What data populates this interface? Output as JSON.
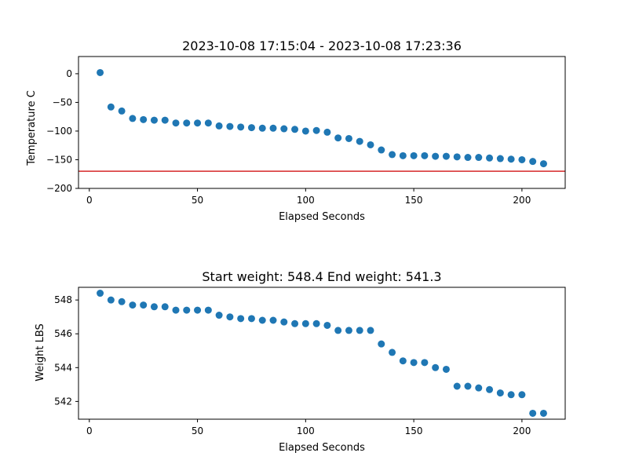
{
  "chart_data": [
    {
      "type": "scatter",
      "title": "2023-10-08 17:15:04 - 2023-10-08 17:23:36",
      "xlabel": "Elapsed Seconds",
      "ylabel": "Temperature C",
      "xlim": [
        -5,
        220
      ],
      "ylim": [
        -200,
        30
      ],
      "xticks": [
        0,
        50,
        100,
        150,
        200
      ],
      "yticks": [
        0,
        -50,
        -100,
        -150,
        -200
      ],
      "ytick_labels": [
        "0",
        "−50",
        "−100",
        "−150",
        "−200"
      ],
      "x": [
        5,
        10,
        15,
        20,
        25,
        30,
        35,
        40,
        45,
        50,
        55,
        60,
        65,
        70,
        75,
        80,
        85,
        90,
        95,
        100,
        105,
        110,
        115,
        120,
        125,
        130,
        135,
        140,
        145,
        150,
        155,
        160,
        165,
        170,
        175,
        180,
        185,
        190,
        195,
        200,
        205,
        210
      ],
      "y": [
        2,
        -58,
        -65,
        -78,
        -80,
        -81,
        -81,
        -86,
        -86,
        -86,
        -86,
        -91,
        -92,
        -93,
        -94,
        -95,
        -95,
        -96,
        -97,
        -100,
        -99,
        -102,
        -112,
        -113,
        -118,
        -124,
        -133,
        -141,
        -143,
        -143,
        -143,
        -144,
        -144,
        -145,
        -146,
        -146,
        -147,
        -148,
        -149,
        -150,
        -153,
        -157
      ],
      "hline": {
        "y": -170,
        "color": "#d62728"
      },
      "marker_color": "#1f77b4",
      "grid": false
    },
    {
      "type": "scatter",
      "title": "Start weight: 548.4 End weight: 541.3",
      "xlabel": "Elapsed Seconds",
      "ylabel": "Weight LBS",
      "xlim": [
        -5,
        220
      ],
      "ylim": [
        540.95,
        548.75
      ],
      "xticks": [
        0,
        50,
        100,
        150,
        200
      ],
      "yticks": [
        542,
        544,
        546,
        548
      ],
      "ytick_labels": [
        "542",
        "544",
        "546",
        "548"
      ],
      "x": [
        5,
        10,
        15,
        20,
        25,
        30,
        35,
        40,
        45,
        50,
        55,
        60,
        65,
        70,
        75,
        80,
        85,
        90,
        95,
        100,
        105,
        110,
        115,
        120,
        125,
        130,
        135,
        140,
        145,
        150,
        155,
        160,
        165,
        170,
        175,
        180,
        185,
        190,
        195,
        200,
        205,
        210
      ],
      "y": [
        548.4,
        548.0,
        547.9,
        547.7,
        547.7,
        547.6,
        547.6,
        547.4,
        547.4,
        547.4,
        547.4,
        547.1,
        547.0,
        546.9,
        546.9,
        546.8,
        546.8,
        546.7,
        546.6,
        546.6,
        546.6,
        546.5,
        546.2,
        546.2,
        546.2,
        546.2,
        545.4,
        544.9,
        544.4,
        544.3,
        544.3,
        544.0,
        543.9,
        542.9,
        542.9,
        542.8,
        542.7,
        542.5,
        542.4,
        542.4,
        541.3,
        541.3
      ],
      "marker_color": "#1f77b4",
      "grid": false
    }
  ]
}
